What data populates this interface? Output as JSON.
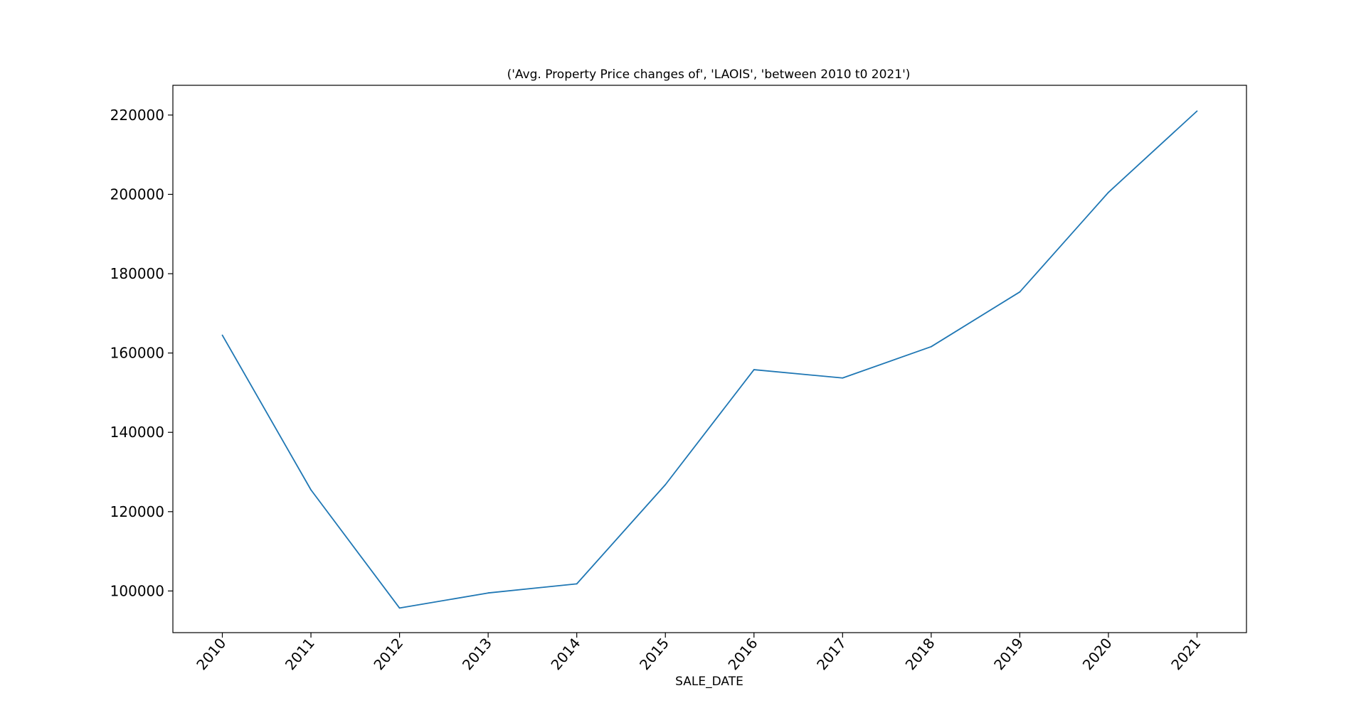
{
  "chart_data": {
    "type": "line",
    "title": "('Avg. Property Price changes of', 'LAOIS', 'between 2010 t0 2021')",
    "xlabel": "SALE_DATE",
    "ylabel": "",
    "categories": [
      "2010",
      "2011",
      "2012",
      "2013",
      "2014",
      "2015",
      "2016",
      "2017",
      "2018",
      "2019",
      "2020",
      "2021"
    ],
    "series": [
      {
        "values": [
          164500,
          125500,
          95700,
          99500,
          101800,
          126800,
          155800,
          153700,
          161600,
          175400,
          200500,
          221000
        ]
      }
    ],
    "ylim": [
      89500,
      227500
    ],
    "yticks": [
      100000,
      120000,
      140000,
      160000,
      180000,
      200000,
      220000
    ],
    "line_color": "#1f77b4",
    "grid": false,
    "legend": "none"
  }
}
